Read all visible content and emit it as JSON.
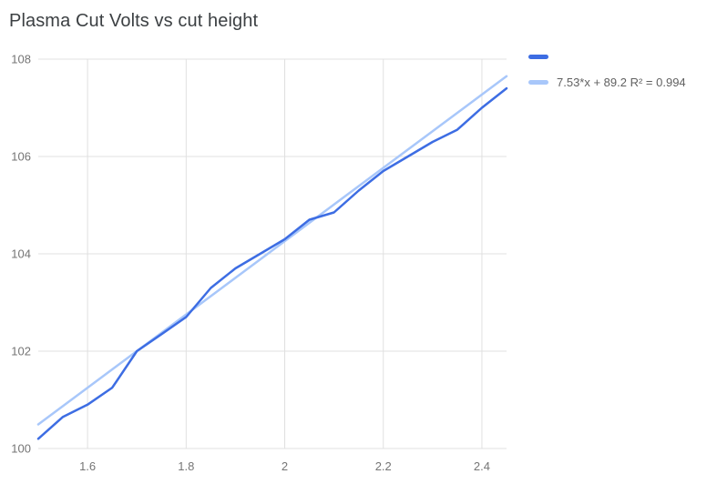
{
  "title": "Plasma Cut Volts vs cut height",
  "colors": {
    "series": "#3d6de3",
    "trendline": "#a8c7fa",
    "grid": "#e0e0e0",
    "axis_text": "#757575",
    "title_text": "#3c4043",
    "legend_text": "#616161",
    "background": "#ffffff"
  },
  "legend": {
    "items": [
      {
        "label": "",
        "color": "#3d6de3"
      },
      {
        "label": "7.53*x + 89.2 R² = 0.994",
        "color": "#a8c7fa"
      }
    ]
  },
  "chart_data": {
    "type": "line",
    "title": "Plasma Cut Volts vs cut height",
    "xlabel": "",
    "ylabel": "",
    "xlim": [
      1.5,
      2.45
    ],
    "ylim": [
      100,
      108
    ],
    "x_ticks": [
      1.6,
      1.8,
      2,
      2.2,
      2.4
    ],
    "y_ticks": [
      100,
      102,
      104,
      106,
      108
    ],
    "grid": true,
    "legend_position": "top-right",
    "series": [
      {
        "name": "",
        "type": "line",
        "color": "#3d6de3",
        "x": [
          1.5,
          1.55,
          1.6,
          1.65,
          1.7,
          1.75,
          1.8,
          1.85,
          1.9,
          1.95,
          2.0,
          2.05,
          2.1,
          2.15,
          2.2,
          2.25,
          2.3,
          2.35,
          2.4,
          2.45
        ],
        "y": [
          100.2,
          100.65,
          100.9,
          101.25,
          102.0,
          102.35,
          102.7,
          103.3,
          103.7,
          104.0,
          104.3,
          104.7,
          104.85,
          105.3,
          105.7,
          106.0,
          106.3,
          106.55,
          107.0,
          107.4
        ]
      },
      {
        "name": "trendline",
        "type": "trendline",
        "label": "7.53*x + 89.2 R² = 0.994",
        "slope": 7.53,
        "intercept": 89.2,
        "r_squared": 0.994,
        "color": "#a8c7fa"
      }
    ]
  }
}
